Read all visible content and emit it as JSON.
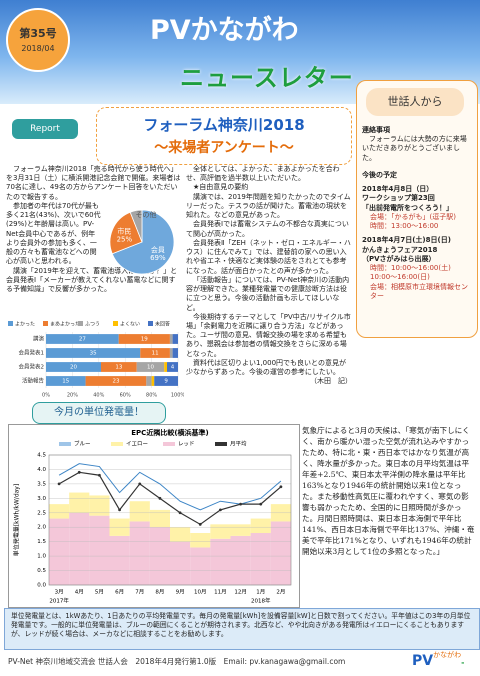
{
  "header": {
    "issue": "第35号",
    "date": "2018/04",
    "title": "PVかながわ",
    "subtitle": "ニュースレター"
  },
  "report": {
    "tag": "Report",
    "title": "フォーラム神奈川2018",
    "subtitle": "～来場者アンケート～",
    "left_paragraphs": [
      "フォーラム神奈川2018「売る時代から使う時代へ」を3月31日（土）に横浜開港記念会館で開催。来場者は70名に達し、49名の方からアンケート回答をいただいたので報告する。",
      "参加者の年代は70代が最も多く21名(43%)、次いで60代(29%)と年齢層は高い。PV-Net会員中心であるが、例年より会員外の参加も多く、一般の方々も蓄電池などへの関心が高いと思われる。",
      "講演「2019年を迎えて、蓄電池導入は必要か？」と会員発表Ⅰ「メーカーが教えてくれない蓄電などに関する予備知識」で反響が多かった。"
    ],
    "middle_paragraphs": [
      "全体としては、よかった、まあよかったを合わせ、高評価を過半数以上いただいた。",
      "★自由意見の要約",
      "講演では、2019年問題を知りたかったのでタイムリーだった。テスラの話が聞けた。蓄電池の現状を知れた。などの意見があった。",
      "会員発表Ⅰでは蓄電システムの不都合な真実について関心が高かった。",
      "会員発表Ⅱ「ZEH（ネット・ゼロ・エネルギー・ハウス）に住んでみて」では、建替前の家への思い入れや省エネ・快適など実体験の話をされとても参考になった。話が面白かったとの声が多かった。",
      "「活動報告」については、PV-Net神奈川の活動内容が理解できた。業種発電量での健康診断方法は役に立つと思う。今後の活動計画も示してほしいなど。",
      "今後期待するテーマとして「PV中古/リサイクル市場」「余剰電力を近隣に譲り合う方法」などがあった。ユーザ間の意見、情報交換の場を求める希望もあり、懇親会は参加者の情報交換をさらに深める場となった。",
      "資料代は区切りよい1,000円でも良いとの意見が少なからずあった。今後の運営の参考にしたい。",
      "（木田　記）"
    ]
  },
  "sidebar": {
    "title": "世話人から",
    "notice_heading": "連絡事項",
    "notice": "フォーラムには大勢の方に来場いただきありがとうございました。",
    "schedule_heading": "今後の予定",
    "events": [
      {
        "date": "2018年4月8日（日）",
        "name": "ワークショップ第23回",
        "detail": "「出前発電所をつくろう！」",
        "lines": [
          "会場：「かるがも」(逗子駅)",
          "時間：13:00～16:00"
        ]
      },
      {
        "date": "2018年4月7日(土)8日(日)",
        "name": "かんきょうフェア2018",
        "detail": "（PVさがみはら出展）",
        "lines": [
          "時間：10:00～16:00(土)",
          "10:00～16:00(日)",
          "会場：相模原市立環境情報センター"
        ]
      }
    ]
  },
  "monthly_label": "今月の単位発電量！",
  "weather_text": "気象庁によると3月の天候は、「寒気が南下しにくく、南から暖かい湿った空気が流れ込みやすかったため、特に北・東・西日本ではかなり気温が高く、降水量が多かった。東日本の月平均気温は平年差+2.5℃、東日本太平洋側の降水量は平年比163%となり1946年の統計開始以来1位となった。また移動性高気圧に覆われやすく、寒気の影響も弱かったため、全国的に日照時間が多かった。月間日照時間は、東日本日本海側で平年比141%、西日本日本海側で平年比137%、沖縄・奄美で平年比171%となり、いずれも1946年の統計開始以来3月として1位の多照となった。」",
  "note": "単位発電量とは、1kWあたり、1日あたりの平均発電量です。毎月の発電量[kWh]を設備容量[kW]と日数で割ってください。平年値はこの3年の月単位発電量です。一般的に単位発電量は、ブルーの範囲にくることが期待されます。北西など、やや北向きがある発電所はイエローにくることもありますが、レッドが続く場合は、メーカなどに相談することをお勧めします。",
  "footer": {
    "text": "PV-Net 神奈川地域交流会 世話人会　2018年4月発行第1.0版　Email: pv.kanagawa@gmail.com",
    "logo": "PV",
    "logo_sub": "かながわ",
    "logo_net": "-Net"
  },
  "chart_data": [
    {
      "type": "pie",
      "categories": [
        "会員",
        "市民",
        "その他"
      ],
      "values": [
        69,
        25,
        6
      ],
      "value_labels": [
        "69%",
        "25%",
        null
      ],
      "colors": [
        "#6fa8dc",
        "#ed7d31",
        "#a5a5a5"
      ]
    },
    {
      "type": "bar",
      "orientation": "horizontal",
      "stacked": true,
      "categories": [
        "講演",
        "会員発表1",
        "会員発表2",
        "活動報告"
      ],
      "series": [
        {
          "name": "よかった",
          "color": "#5b9bd5",
          "values": [
            27,
            35,
            20,
            15
          ]
        },
        {
          "name": "まあよかった",
          "color": "#ed7d31",
          "values": [
            19,
            11,
            13,
            23
          ]
        },
        {
          "name": "ふつう",
          "color": "#a5a5a5",
          "values": [
            1,
            1,
            10,
            2
          ]
        },
        {
          "name": "よくない",
          "color": "#ffc000",
          "values": [
            0,
            0,
            1,
            1
          ]
        },
        {
          "name": "未回答",
          "color": "#4472c4",
          "values": [
            2,
            2,
            4,
            9
          ]
        }
      ],
      "xlim": [
        0,
        100
      ],
      "xticks": [
        {
          "value": 0,
          "label": "0%"
        },
        {
          "value": 20,
          "label": "20%"
        },
        {
          "value": 40,
          "label": "40%"
        },
        {
          "value": 60,
          "label": "60%"
        },
        {
          "value": 80,
          "label": "80%"
        },
        {
          "value": 100,
          "label": "100%"
        }
      ],
      "legend": "top"
    },
    {
      "type": "line",
      "title": "EPC近隣比較(横浜基準)",
      "ylabel": "単位発電量[kWh/kW/day]",
      "categories": [
        "3月",
        "4月",
        "5月",
        "6月",
        "7月",
        "8月",
        "9月",
        "10月",
        "11月",
        "12月",
        "1月",
        "2月"
      ],
      "year_labels": [
        "2017年",
        "2018年"
      ],
      "ylim": [
        0,
        4.5
      ],
      "yticks": [
        {
          "value": 0,
          "label": "0.0"
        },
        0.5,
        {
          "value": 1,
          "label": "1.0"
        },
        1.5,
        {
          "value": 2,
          "label": "2.0"
        },
        2.5,
        {
          "value": 3,
          "label": "3.0"
        },
        3.5,
        {
          "value": 4,
          "label": "4.0"
        },
        4.5
      ],
      "grid": true,
      "series": [
        {
          "name": "ブルー",
          "color": "#9fc5e8",
          "values": [
            3.8,
            4.2,
            4.1,
            3.2,
            3.9,
            3.5,
            2.9,
            2.6,
            2.9,
            2.8,
            3.0,
            3.6
          ]
        },
        {
          "name": "イエロー",
          "color": "#fff2a8",
          "values": [
            2.8,
            3.2,
            3.1,
            2.3,
            2.9,
            2.6,
            2.0,
            1.8,
            2.1,
            2.1,
            2.3,
            2.8
          ]
        },
        {
          "name": "レッド",
          "color": "#f4c7d9",
          "values": [
            2.3,
            2.5,
            2.4,
            1.7,
            2.2,
            2.0,
            1.5,
            1.3,
            1.6,
            1.7,
            1.8,
            2.2
          ]
        },
        {
          "name": "月平均",
          "color": "#333333",
          "values": [
            3.5,
            3.9,
            3.8,
            2.6,
            3.5,
            3.0,
            2.5,
            2.1,
            2.6,
            2.8,
            2.8,
            3.4
          ]
        }
      ],
      "legend": "top"
    }
  ]
}
